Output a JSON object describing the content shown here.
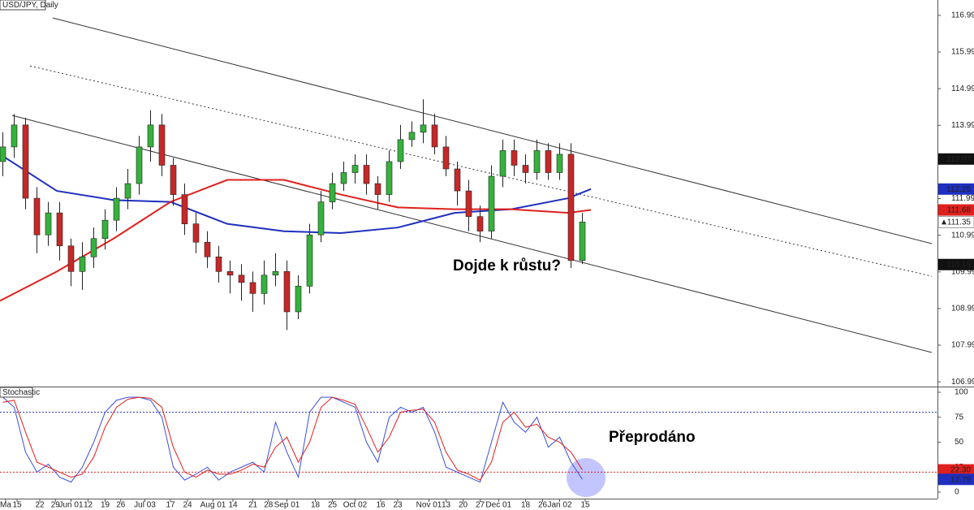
{
  "chart_data": [
    {
      "type": "candlestick",
      "title": "USD/JPY, Daily",
      "annotation": "Dojde k růstu?",
      "x": [
        1,
        5,
        9,
        13,
        17,
        21,
        25,
        29,
        33,
        37,
        41,
        45,
        49,
        53,
        57,
        61,
        65,
        69,
        73,
        77,
        81,
        85,
        89,
        93,
        97,
        101,
        105,
        109,
        113,
        117,
        121,
        125,
        129,
        133,
        137,
        141,
        145,
        149,
        153,
        157,
        161,
        165,
        169,
        173,
        177,
        181,
        185,
        189,
        193,
        197,
        201,
        205
      ],
      "open": [
        113.0,
        113.4,
        114.0,
        112.0,
        111.0,
        111.6,
        110.7,
        110.0,
        110.4,
        110.9,
        111.4,
        112.0,
        112.4,
        113.4,
        114.0,
        112.9,
        112.1,
        111.3,
        110.8,
        110.4,
        110.0,
        109.9,
        109.7,
        109.4,
        109.9,
        110.0,
        108.9,
        109.6,
        111.0,
        111.9,
        112.4,
        112.7,
        112.9,
        112.4,
        112.1,
        113.0,
        113.6,
        113.8,
        114.0,
        113.4,
        112.8,
        112.2,
        111.5,
        111.1,
        112.6,
        113.3,
        112.9,
        112.7,
        113.3,
        112.7,
        113.2,
        110.3
      ],
      "high": [
        113.8,
        114.3,
        114.2,
        112.3,
        111.9,
        111.9,
        110.9,
        110.8,
        111.2,
        111.7,
        112.3,
        112.8,
        113.7,
        114.4,
        114.3,
        113.1,
        112.4,
        111.6,
        111.1,
        110.7,
        110.3,
        110.2,
        110.0,
        110.3,
        110.5,
        110.3,
        109.9,
        111.3,
        112.2,
        112.7,
        113.0,
        113.2,
        113.2,
        112.6,
        113.3,
        114.0,
        114.1,
        114.7,
        114.3,
        113.7,
        113.0,
        112.5,
        111.8,
        112.9,
        113.6,
        113.6,
        113.2,
        113.6,
        113.5,
        113.5,
        113.5,
        111.6
      ],
      "low": [
        112.6,
        113.1,
        111.7,
        110.5,
        110.7,
        110.3,
        109.6,
        109.5,
        110.1,
        110.6,
        111.1,
        111.7,
        112.1,
        113.0,
        112.6,
        111.8,
        111.0,
        110.5,
        110.1,
        109.7,
        109.4,
        109.2,
        108.9,
        109.1,
        109.6,
        108.4,
        108.7,
        109.4,
        110.8,
        111.7,
        112.2,
        112.4,
        112.1,
        111.7,
        111.9,
        112.8,
        113.4,
        113.5,
        113.2,
        112.6,
        111.8,
        111.1,
        110.8,
        110.9,
        112.3,
        112.6,
        112.4,
        112.5,
        112.5,
        112.5,
        110.1,
        110.2
      ],
      "close": [
        113.4,
        114.0,
        112.0,
        111.0,
        111.6,
        110.7,
        110.0,
        110.4,
        110.9,
        111.4,
        112.0,
        112.4,
        113.4,
        114.0,
        112.9,
        112.1,
        111.3,
        110.8,
        110.4,
        110.0,
        109.9,
        109.7,
        109.4,
        109.9,
        110.0,
        108.9,
        109.6,
        111.0,
        111.9,
        112.4,
        112.7,
        112.9,
        112.4,
        112.1,
        113.0,
        113.6,
        113.8,
        114.0,
        113.4,
        112.8,
        112.2,
        111.5,
        111.1,
        112.6,
        113.3,
        112.9,
        112.7,
        113.3,
        112.7,
        113.2,
        110.3,
        111.35
      ],
      "up_color": "#35b23c",
      "down_color": "#c62828",
      "series": [
        {
          "color": "#1f2fbf",
          "x": [
            0,
            20,
            40,
            60,
            80,
            100,
            120,
            140,
            160,
            180,
            200,
            208
          ],
          "values": [
            113.2,
            112.2,
            111.95,
            111.9,
            111.3,
            111.1,
            111.05,
            111.2,
            111.6,
            111.7,
            112.0,
            112.25
          ]
        },
        {
          "color": "#e0201c",
          "x": [
            0,
            20,
            40,
            60,
            80,
            100,
            120,
            140,
            160,
            180,
            200,
            208
          ],
          "values": [
            109.2,
            110.0,
            110.9,
            111.9,
            112.5,
            112.5,
            112.1,
            111.75,
            111.7,
            111.7,
            111.6,
            111.68
          ]
        }
      ],
      "trendlines": [
        {
          "style": "solid",
          "x": [
            18.6,
            328
          ],
          "y": [
            116.92,
            110.76
          ]
        },
        {
          "style": "dotted",
          "x": [
            10.6,
            328
          ],
          "y": [
            115.61,
            109.87
          ]
        },
        {
          "style": "solid",
          "x": [
            4.3,
            328
          ],
          "y": [
            114.26,
            107.79
          ]
        }
      ],
      "markers": [
        {
          "value": 113.07,
          "color": "#111111"
        },
        {
          "value": 112.25,
          "color": "#1f2fbf"
        },
        {
          "value": 111.68,
          "color": "#e0201c"
        },
        {
          "value": 111.35,
          "color": "#ffffff"
        },
        {
          "value": 110.19,
          "color": "#111111"
        }
      ],
      "xlim": [
        0,
        330
      ],
      "ylim": [
        106.86,
        117.41
      ],
      "yticks": [
        116.99,
        115.99,
        114.99,
        113.99,
        112.99,
        111.99,
        110.99,
        109.99,
        108.99,
        107.99,
        106.99
      ]
    },
    {
      "type": "line",
      "title": "Stochastic",
      "annotation": "Přeprodáno",
      "x": [
        1,
        5,
        9,
        13,
        17,
        21,
        25,
        29,
        33,
        37,
        41,
        45,
        49,
        53,
        57,
        61,
        65,
        69,
        73,
        77,
        81,
        85,
        89,
        93,
        97,
        101,
        105,
        109,
        113,
        117,
        121,
        125,
        129,
        133,
        137,
        141,
        145,
        149,
        153,
        157,
        161,
        165,
        169,
        173,
        177,
        181,
        185,
        189,
        193,
        197,
        201,
        205
      ],
      "series": [
        {
          "color": "#3a4fd8",
          "values": [
            95,
            85,
            40,
            20,
            28,
            15,
            10,
            25,
            50,
            80,
            92,
            95,
            95,
            92,
            75,
            25,
            12,
            18,
            25,
            12,
            20,
            25,
            30,
            20,
            70,
            40,
            15,
            80,
            95,
            95,
            90,
            85,
            50,
            30,
            75,
            85,
            80,
            85,
            60,
            25,
            20,
            15,
            10,
            50,
            90,
            70,
            60,
            75,
            45,
            55,
            30,
            12.79
          ]
        },
        {
          "color": "#e0201c",
          "values": [
            90,
            92,
            60,
            30,
            25,
            20,
            15,
            18,
            35,
            65,
            85,
            93,
            95,
            94,
            85,
            45,
            20,
            15,
            22,
            18,
            18,
            22,
            28,
            25,
            45,
            55,
            30,
            50,
            85,
            95,
            92,
            88,
            65,
            40,
            55,
            80,
            82,
            83,
            70,
            40,
            22,
            18,
            12,
            30,
            70,
            80,
            65,
            68,
            55,
            50,
            40,
            22.3
          ]
        }
      ],
      "levels": [
        {
          "value": 80,
          "color": "#1f2fbf"
        },
        {
          "value": 20,
          "color": "#e0201c"
        }
      ],
      "markers": [
        {
          "value": 22.3,
          "label": "22.30",
          "color": "#e0201c"
        },
        {
          "value": 12.79,
          "color": "#1f2fbf"
        }
      ],
      "xlim": [
        0,
        330
      ],
      "ylim": [
        -6.5,
        104.9
      ],
      "yticks": [
        100,
        75,
        50,
        25,
        0
      ],
      "xticks": [
        {
          "value": 2,
          "label": "Ma"
        },
        {
          "value": 6,
          "label": "15"
        },
        {
          "value": 14,
          "label": "22"
        },
        {
          "value": 19.5,
          "label": "29"
        },
        {
          "value": 25,
          "label": "Jun 01"
        },
        {
          "value": 31,
          "label": "12"
        },
        {
          "value": 37,
          "label": "19"
        },
        {
          "value": 42.5,
          "label": "26"
        },
        {
          "value": 51,
          "label": "Jul 03"
        },
        {
          "value": 60,
          "label": "17"
        },
        {
          "value": 66,
          "label": "24"
        },
        {
          "value": 75,
          "label": "Aug 01"
        },
        {
          "value": 82,
          "label": "14"
        },
        {
          "value": 89,
          "label": "21"
        },
        {
          "value": 94.5,
          "label": "28"
        },
        {
          "value": 101,
          "label": "Sep 01"
        },
        {
          "value": 111,
          "label": "18"
        },
        {
          "value": 117,
          "label": "25"
        },
        {
          "value": 125,
          "label": "Oct 02"
        },
        {
          "value": 134,
          "label": "16"
        },
        {
          "value": 140,
          "label": "23"
        },
        {
          "value": 151,
          "label": "Nov 01"
        },
        {
          "value": 157,
          "label": "13"
        },
        {
          "value": 163,
          "label": "20"
        },
        {
          "value": 169,
          "label": "27"
        },
        {
          "value": 175.5,
          "label": "Dec 01"
        },
        {
          "value": 185,
          "label": "18"
        },
        {
          "value": 191,
          "label": "26"
        },
        {
          "value": 197,
          "label": "Jan 02"
        },
        {
          "value": 206,
          "label": "15"
        }
      ]
    }
  ]
}
